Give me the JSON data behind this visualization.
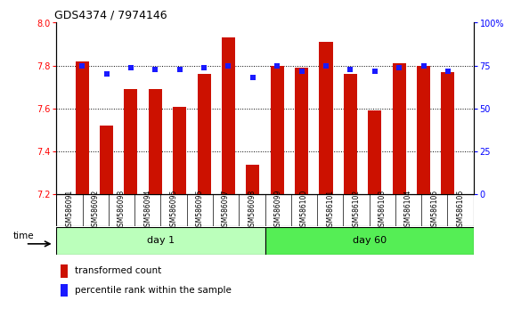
{
  "title": "GDS4374 / 7974146",
  "samples": [
    "GSM586091",
    "GSM586092",
    "GSM586093",
    "GSM586094",
    "GSM586095",
    "GSM586096",
    "GSM586097",
    "GSM586098",
    "GSM586099",
    "GSM586100",
    "GSM586101",
    "GSM586102",
    "GSM586103",
    "GSM586104",
    "GSM586105",
    "GSM586106"
  ],
  "bar_values": [
    7.82,
    7.52,
    7.69,
    7.69,
    7.61,
    7.76,
    7.93,
    7.34,
    7.8,
    7.79,
    7.91,
    7.76,
    7.59,
    7.81,
    7.8,
    7.77
  ],
  "percentile_values": [
    75,
    70,
    74,
    73,
    73,
    74,
    75,
    68,
    75,
    72,
    75,
    73,
    72,
    74,
    75,
    72
  ],
  "bar_color": "#cc1100",
  "percentile_color": "#1a1aff",
  "ylim_left": [
    7.2,
    8.0
  ],
  "ylim_right": [
    0,
    100
  ],
  "yticks_left": [
    7.2,
    7.4,
    7.6,
    7.8,
    8.0
  ],
  "yticks_right": [
    0,
    25,
    50,
    75,
    100
  ],
  "day1_label": "day 1",
  "day60_label": "day 60",
  "time_label": "time",
  "legend_bar": "transformed count",
  "legend_pct": "percentile rank within the sample",
  "bar_width": 0.55,
  "tick_area_color": "#cccccc",
  "day1_color": "#bbffbb",
  "day60_color": "#55ee55",
  "title_fontsize": 9,
  "axis_fontsize": 7,
  "label_fontsize": 5.5,
  "legend_fontsize": 7.5
}
